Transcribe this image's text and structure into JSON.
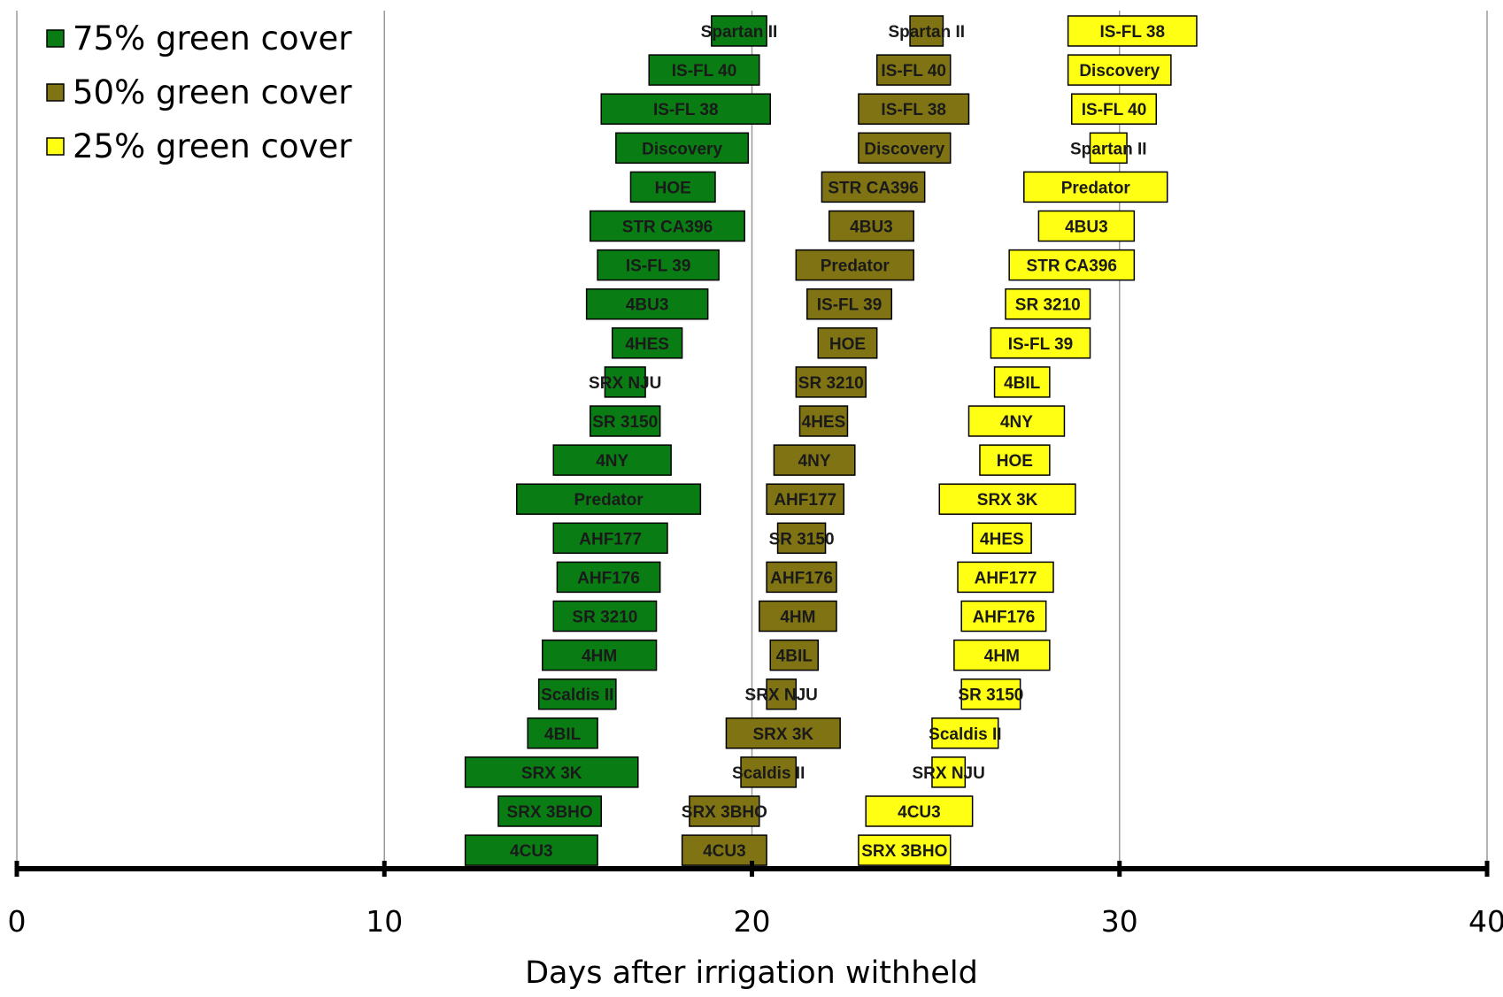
{
  "chart_data": {
    "type": "bar",
    "orientation": "horizontal-range",
    "xlabel": "Days after irrigation withheld",
    "xlim": [
      0,
      40
    ],
    "xticks": [
      0,
      10,
      20,
      30,
      40
    ],
    "grid": "vertical",
    "legend_position": "top-left",
    "rows": 22,
    "series": [
      {
        "name": "75% green cover",
        "color": "#0a7c14",
        "label_color": "#1a1a1a",
        "bars": [
          {
            "label": "Spartan II",
            "start": 18.9,
            "end": 20.4
          },
          {
            "label": "IS-FL 40",
            "start": 17.2,
            "end": 20.2
          },
          {
            "label": "IS-FL 38",
            "start": 15.9,
            "end": 20.5
          },
          {
            "label": "Discovery",
            "start": 16.3,
            "end": 19.9
          },
          {
            "label": "HOE",
            "start": 16.7,
            "end": 19.0
          },
          {
            "label": "STR CA396",
            "start": 15.6,
            "end": 19.8
          },
          {
            "label": "IS-FL 39",
            "start": 15.8,
            "end": 19.1
          },
          {
            "label": "4BU3",
            "start": 15.5,
            "end": 18.8
          },
          {
            "label": "4HES",
            "start": 16.2,
            "end": 18.1
          },
          {
            "label": "SRX NJU",
            "start": 16.0,
            "end": 17.1
          },
          {
            "label": "SR 3150",
            "start": 15.6,
            "end": 17.5
          },
          {
            "label": "4NY",
            "start": 14.6,
            "end": 17.8
          },
          {
            "label": "Predator",
            "start": 13.6,
            "end": 18.6
          },
          {
            "label": "AHF177",
            "start": 14.6,
            "end": 17.7
          },
          {
            "label": "AHF176",
            "start": 14.7,
            "end": 17.5
          },
          {
            "label": "SR 3210",
            "start": 14.6,
            "end": 17.4
          },
          {
            "label": "4HM",
            "start": 14.3,
            "end": 17.4
          },
          {
            "label": "Scaldis II",
            "start": 14.2,
            "end": 16.3
          },
          {
            "label": "4BIL",
            "start": 13.9,
            "end": 15.8
          },
          {
            "label": "SRX 3K",
            "start": 12.2,
            "end": 16.9
          },
          {
            "label": "SRX 3BHO",
            "start": 13.1,
            "end": 15.9
          },
          {
            "label": "4CU3",
            "start": 12.2,
            "end": 15.8
          }
        ]
      },
      {
        "name": "50% green cover",
        "color": "#7f7313",
        "label_color": "#1a1a1a",
        "bars": [
          {
            "label": "Spartan II",
            "start": 24.3,
            "end": 25.2
          },
          {
            "label": "IS-FL 40",
            "start": 23.4,
            "end": 25.4
          },
          {
            "label": "IS-FL 38",
            "start": 22.9,
            "end": 25.9
          },
          {
            "label": "Discovery",
            "start": 22.9,
            "end": 25.4
          },
          {
            "label": "STR CA396",
            "start": 21.9,
            "end": 24.7
          },
          {
            "label": "4BU3",
            "start": 22.1,
            "end": 24.4
          },
          {
            "label": "Predator",
            "start": 21.2,
            "end": 24.4
          },
          {
            "label": "IS-FL 39",
            "start": 21.5,
            "end": 23.8
          },
          {
            "label": "HOE",
            "start": 21.8,
            "end": 23.4
          },
          {
            "label": "SR 3210",
            "start": 21.2,
            "end": 23.1
          },
          {
            "label": "4HES",
            "start": 21.3,
            "end": 22.6
          },
          {
            "label": "4NY",
            "start": 20.6,
            "end": 22.8
          },
          {
            "label": "AHF177",
            "start": 20.4,
            "end": 22.5
          },
          {
            "label": "SR 3150",
            "start": 20.7,
            "end": 22.0
          },
          {
            "label": "AHF176",
            "start": 20.4,
            "end": 22.3
          },
          {
            "label": "4HM",
            "start": 20.2,
            "end": 22.3
          },
          {
            "label": "4BIL",
            "start": 20.5,
            "end": 21.8
          },
          {
            "label": "SRX NJU",
            "start": 20.4,
            "end": 21.2
          },
          {
            "label": "SRX 3K",
            "start": 19.3,
            "end": 22.4
          },
          {
            "label": "Scaldis II",
            "start": 19.7,
            "end": 21.2
          },
          {
            "label": "SRX 3BHO",
            "start": 18.3,
            "end": 20.2
          },
          {
            "label": "4CU3",
            "start": 18.1,
            "end": 20.4
          }
        ]
      },
      {
        "name": "25% green cover",
        "color": "#ffff14",
        "label_color": "#1a1a1a",
        "bars": [
          {
            "label": "IS-FL 38",
            "start": 28.6,
            "end": 32.1
          },
          {
            "label": "Discovery",
            "start": 28.6,
            "end": 31.4
          },
          {
            "label": "IS-FL 40",
            "start": 28.7,
            "end": 31.0
          },
          {
            "label": "Spartan II",
            "start": 29.2,
            "end": 30.2
          },
          {
            "label": "Predator",
            "start": 27.4,
            "end": 31.3
          },
          {
            "label": "4BU3",
            "start": 27.8,
            "end": 30.4
          },
          {
            "label": "STR CA396",
            "start": 27.0,
            "end": 30.4
          },
          {
            "label": "SR 3210",
            "start": 26.9,
            "end": 29.2
          },
          {
            "label": "IS-FL 39",
            "start": 26.5,
            "end": 29.2
          },
          {
            "label": "4BIL",
            "start": 26.6,
            "end": 28.1
          },
          {
            "label": "4NY",
            "start": 25.9,
            "end": 28.5
          },
          {
            "label": "HOE",
            "start": 26.2,
            "end": 28.1
          },
          {
            "label": "SRX 3K",
            "start": 25.1,
            "end": 28.8
          },
          {
            "label": "4HES",
            "start": 26.0,
            "end": 27.6
          },
          {
            "label": "AHF177",
            "start": 25.6,
            "end": 28.2
          },
          {
            "label": "AHF176",
            "start": 25.7,
            "end": 28.0
          },
          {
            "label": "4HM",
            "start": 25.5,
            "end": 28.1
          },
          {
            "label": "SR 3150",
            "start": 25.7,
            "end": 27.3
          },
          {
            "label": "Scaldis II",
            "start": 24.9,
            "end": 26.7
          },
          {
            "label": "SRX NJU",
            "start": 24.9,
            "end": 25.8
          },
          {
            "label": "4CU3",
            "start": 23.1,
            "end": 26.0
          },
          {
            "label": "SRX 3BHO",
            "start": 22.9,
            "end": 25.4
          }
        ]
      }
    ]
  }
}
